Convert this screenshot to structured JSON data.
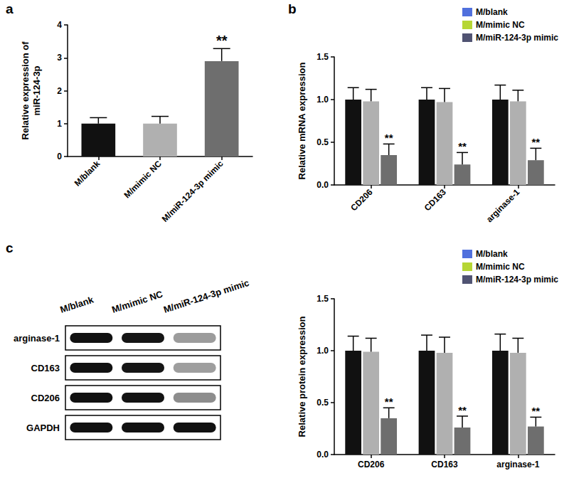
{
  "panel_labels": [
    "a",
    "b",
    "c"
  ],
  "chart_data": [
    {
      "type": "bar",
      "ylabel": "Relative expression of\nmiR-124-3p",
      "categories": [
        "M/blank",
        "M/mimic NC",
        "M/miR-124-3p mimic"
      ],
      "series": [
        {
          "values": [
            1.0,
            1.0,
            2.9
          ],
          "errors": [
            0.18,
            0.22,
            0.38
          ],
          "colors": [
            "#111111",
            "#b0b0b0",
            "#6e6e6e"
          ]
        }
      ],
      "ylim": [
        0,
        4
      ],
      "yticks": [
        0,
        1,
        2,
        3,
        4
      ],
      "grid": false,
      "annotations": [
        {
          "category": "M/miR-124-3p mimic",
          "text": "**"
        }
      ]
    },
    {
      "type": "bar",
      "ylabel": "Relative mRNA expression",
      "categories": [
        "CD206",
        "CD163",
        "arginase-1"
      ],
      "series": [
        {
          "name": "M/blank",
          "color": "#111111",
          "values": [
            1.0,
            1.0,
            1.0
          ],
          "errors": [
            0.14,
            0.14,
            0.17
          ]
        },
        {
          "name": "M/mimic NC",
          "color": "#b0b0b0",
          "values": [
            0.98,
            0.97,
            0.98
          ],
          "errors": [
            0.14,
            0.16,
            0.13
          ]
        },
        {
          "name": "M/miR-124-3p mimic",
          "color": "#6e6e6e",
          "values": [
            0.35,
            0.24,
            0.29
          ],
          "errors": [
            0.13,
            0.14,
            0.14
          ]
        }
      ],
      "ylim": [
        0,
        1.5
      ],
      "yticks": [
        {
          "value": 0,
          "label": "0.0"
        },
        {
          "value": 0.5,
          "label": "0.5"
        },
        {
          "value": 1,
          "label": "1.0"
        },
        {
          "value": 1.5,
          "label": "1.5"
        }
      ],
      "grid": false,
      "legend": "upper right",
      "annotations": [
        {
          "category": "CD206",
          "series": "M/miR-124-3p mimic",
          "text": "**"
        },
        {
          "category": "CD163",
          "series": "M/miR-124-3p mimic",
          "text": "**"
        },
        {
          "category": "arginase-1",
          "series": "M/miR-124-3p mimic",
          "text": "**"
        }
      ]
    },
    {
      "type": "bar",
      "ylabel": "Relative protein expression",
      "categories": [
        "CD206",
        "CD163",
        "arginase-1"
      ],
      "series": [
        {
          "name": "M/blank",
          "color": "#111111",
          "values": [
            1.0,
            1.0,
            1.0
          ],
          "errors": [
            0.14,
            0.15,
            0.16
          ]
        },
        {
          "name": "M/mimic NC",
          "color": "#b0b0b0",
          "values": [
            0.99,
            0.98,
            0.98
          ],
          "errors": [
            0.13,
            0.15,
            0.14
          ]
        },
        {
          "name": "M/miR-124-3p mimic",
          "color": "#6e6e6e",
          "values": [
            0.35,
            0.26,
            0.27
          ],
          "errors": [
            0.1,
            0.11,
            0.09
          ]
        }
      ],
      "ylim": [
        0,
        1.5
      ],
      "yticks": [
        {
          "value": 0,
          "label": "0.0"
        },
        {
          "value": 0.5,
          "label": "0.5"
        },
        {
          "value": 1,
          "label": "1.0"
        },
        {
          "value": 1.5,
          "label": "1.5"
        }
      ],
      "grid": false,
      "legend": "upper right",
      "annotations": [
        {
          "category": "CD206",
          "series": "M/miR-124-3p mimic",
          "text": "**"
        },
        {
          "category": "CD163",
          "series": "M/miR-124-3p mimic",
          "text": "**"
        },
        {
          "category": "arginase-1",
          "series": "M/miR-124-3p mimic",
          "text": "**"
        }
      ]
    }
  ],
  "blot": {
    "lanes": [
      "M/blank",
      "M/mimic NC",
      "M/miR-124-3p mimic"
    ],
    "rows": [
      "arginase-1",
      "CD163",
      "CD206",
      "GAPDH"
    ]
  }
}
